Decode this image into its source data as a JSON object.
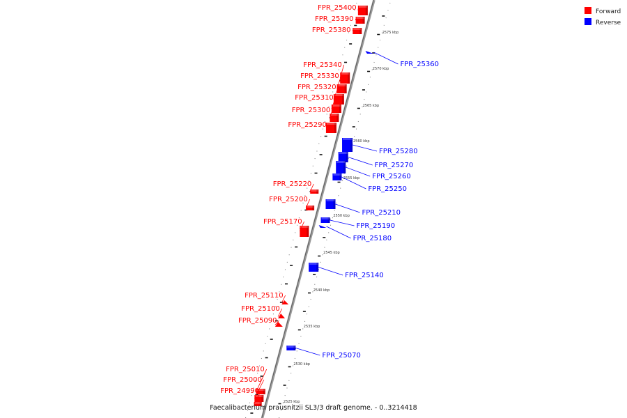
{
  "legend": [
    {
      "label": "Forward",
      "color": "#ff0000"
    },
    {
      "label": "Reverse",
      "color": "#0000ff"
    }
  ],
  "footer": "Faecalibacterium prausnitzii SL3/3 draft genome. - 0..3214418",
  "forward_color": "#ff0000",
  "reverse_color": "#0000ff",
  "ticks": [
    "2525 kbp",
    "2530 kbp",
    "2535 kbp",
    "2540 kbp",
    "2545 kbp",
    "2550 kbp",
    "2555 kbp",
    "2560 kbp",
    "2565 kbp",
    "2570 kbp",
    "2575 kbp"
  ],
  "forward_genes": [
    "FPR_25400",
    "FPR_25390",
    "FPR_25380",
    "FPR_25340",
    "FPR_25330",
    "FPR_25320",
    "FPR_25310",
    "FPR_25300",
    "FPR_25290",
    "FPR_25220",
    "FPR_25200",
    "FPR_25170",
    "FPR_25110",
    "FPR_25100",
    "FPR_25090",
    "FPR_25010",
    "FPR_25000",
    "FPR_24990"
  ],
  "reverse_genes": [
    "FPR_25360",
    "FPR_25280",
    "FPR_25270",
    "FPR_25260",
    "FPR_25250",
    "FPR_25210",
    "FPR_25190",
    "FPR_25180",
    "FPR_25140",
    "FPR_25070"
  ]
}
